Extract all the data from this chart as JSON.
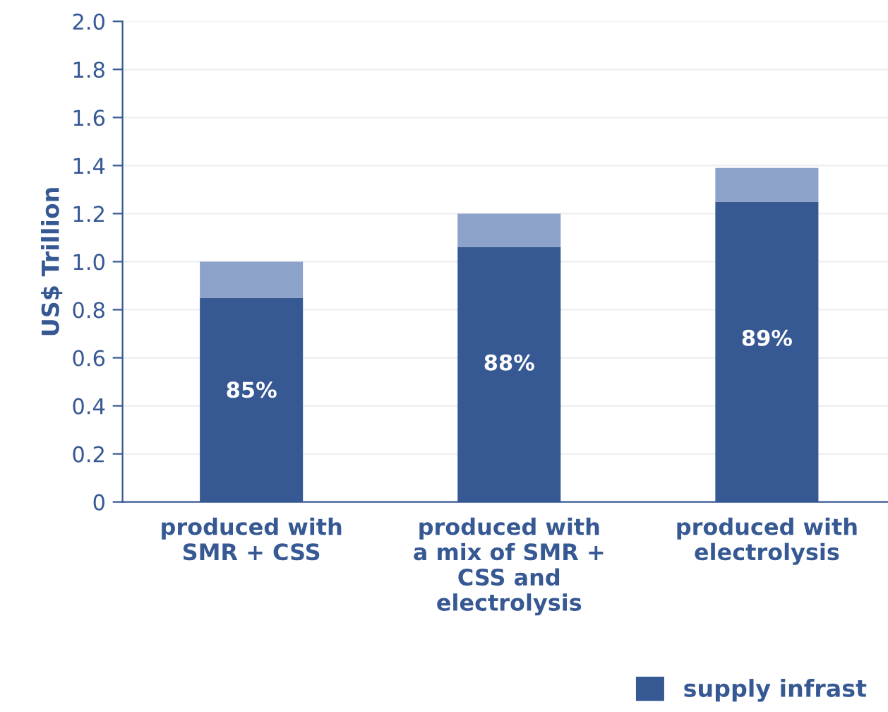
{
  "chart_data": {
    "type": "bar",
    "stacked": true,
    "ylabel": "US$ Trillion",
    "categories": [
      "produced with\nSMR + CSS",
      "produced with\na mix of SMR +\nCSS and\nelectrolysis",
      "produced with\nelectrolysis"
    ],
    "series": [
      {
        "name": "supply infrast",
        "color": "#365893",
        "values": [
          0.85,
          1.06,
          1.25
        ]
      },
      {
        "color": "#8ca2ca",
        "values": [
          0.15,
          0.14,
          0.14
        ]
      }
    ],
    "ylim": [
      0,
      2.0
    ],
    "yticks": [
      {
        "value": 0,
        "label": "0"
      },
      0.2,
      0.4,
      0.6,
      0.8,
      {
        "value": 1.0,
        "label": "1.0"
      },
      1.2,
      1.4,
      1.6,
      1.8,
      {
        "value": 2.0,
        "label": "2.0"
      }
    ],
    "annotations": [
      "85%",
      "88%",
      "89%"
    ],
    "grid": "y",
    "legend": "bottom right"
  }
}
